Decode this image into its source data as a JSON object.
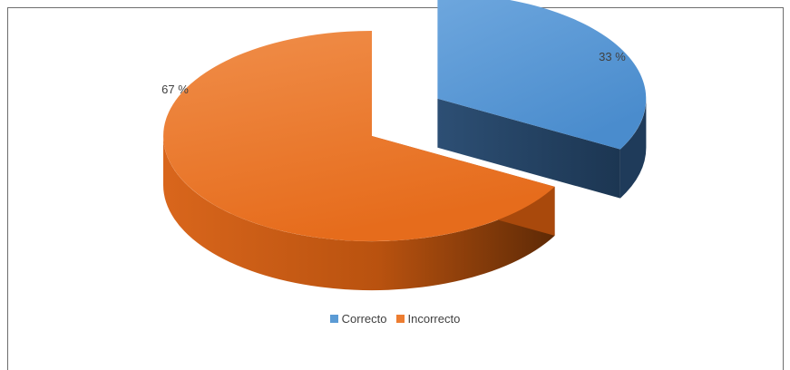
{
  "chart_data": {
    "type": "pie",
    "title": "",
    "categories": [
      "Correcto",
      "Incorrecto"
    ],
    "values": [
      33,
      67
    ],
    "labels": [
      "33 %",
      "67 %"
    ],
    "colors": [
      "#5b9bd5",
      "#ed7d31"
    ],
    "legend_position": "bottom"
  }
}
